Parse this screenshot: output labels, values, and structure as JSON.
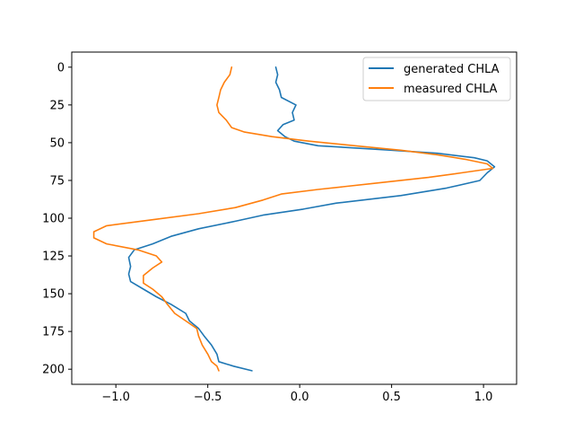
{
  "chart_data": {
    "type": "line",
    "title": "",
    "xlabel": "",
    "ylabel": "",
    "xlim": [
      -1.24,
      1.18
    ],
    "ylim": [
      210,
      -10
    ],
    "y_inverted": true,
    "x_ticks": [
      -1.0,
      -0.5,
      0.0,
      0.5,
      1.0
    ],
    "y_ticks": [
      0,
      25,
      50,
      75,
      100,
      125,
      150,
      175,
      200
    ],
    "grid": false,
    "legend_position": "top-right",
    "series": [
      {
        "name": "generated CHLA",
        "color": "#1f77b4",
        "points": [
          [
            -0.13,
            0
          ],
          [
            -0.12,
            5
          ],
          [
            -0.13,
            10
          ],
          [
            -0.11,
            15
          ],
          [
            -0.1,
            20
          ],
          [
            -0.02,
            25
          ],
          [
            -0.04,
            30
          ],
          [
            -0.03,
            35
          ],
          [
            -0.09,
            38
          ],
          [
            -0.12,
            42
          ],
          [
            -0.08,
            46
          ],
          [
            -0.03,
            49
          ],
          [
            0.1,
            52
          ],
          [
            0.5,
            55
          ],
          [
            0.75,
            57
          ],
          [
            0.95,
            60
          ],
          [
            1.02,
            62
          ],
          [
            1.06,
            66
          ],
          [
            1.02,
            70
          ],
          [
            0.98,
            75
          ],
          [
            0.8,
            80
          ],
          [
            0.55,
            85
          ],
          [
            0.2,
            90
          ],
          [
            0.02,
            94
          ],
          [
            -0.2,
            98
          ],
          [
            -0.35,
            102
          ],
          [
            -0.55,
            107
          ],
          [
            -0.7,
            112
          ],
          [
            -0.8,
            117
          ],
          [
            -0.9,
            121
          ],
          [
            -0.93,
            126
          ],
          [
            -0.92,
            132
          ],
          [
            -0.93,
            137
          ],
          [
            -0.92,
            142
          ],
          [
            -0.85,
            147
          ],
          [
            -0.78,
            152
          ],
          [
            -0.7,
            157
          ],
          [
            -0.62,
            163
          ],
          [
            -0.6,
            168
          ],
          [
            -0.55,
            173
          ],
          [
            -0.52,
            178
          ],
          [
            -0.48,
            184
          ],
          [
            -0.45,
            190
          ],
          [
            -0.44,
            195
          ],
          [
            -0.36,
            198
          ],
          [
            -0.26,
            201
          ]
        ]
      },
      {
        "name": "measured CHLA",
        "color": "#ff7f0e",
        "points": [
          [
            -0.37,
            0
          ],
          [
            -0.38,
            5
          ],
          [
            -0.41,
            10
          ],
          [
            -0.43,
            15
          ],
          [
            -0.44,
            20
          ],
          [
            -0.45,
            25
          ],
          [
            -0.44,
            30
          ],
          [
            -0.4,
            35
          ],
          [
            -0.37,
            40
          ],
          [
            -0.3,
            43
          ],
          [
            -0.15,
            46
          ],
          [
            0.05,
            49
          ],
          [
            0.3,
            52
          ],
          [
            0.55,
            55
          ],
          [
            0.75,
            58
          ],
          [
            0.9,
            61
          ],
          [
            1.02,
            64
          ],
          [
            1.05,
            67
          ],
          [
            0.88,
            70
          ],
          [
            0.7,
            73
          ],
          [
            0.4,
            77
          ],
          [
            0.1,
            81
          ],
          [
            -0.1,
            84
          ],
          [
            -0.2,
            88
          ],
          [
            -0.35,
            93
          ],
          [
            -0.55,
            97
          ],
          [
            -0.8,
            101
          ],
          [
            -1.05,
            105
          ],
          [
            -1.12,
            109
          ],
          [
            -1.12,
            113
          ],
          [
            -1.05,
            117
          ],
          [
            -0.88,
            121
          ],
          [
            -0.78,
            125
          ],
          [
            -0.75,
            129
          ],
          [
            -0.8,
            133
          ],
          [
            -0.85,
            138
          ],
          [
            -0.85,
            143
          ],
          [
            -0.8,
            147
          ],
          [
            -0.75,
            152
          ],
          [
            -0.72,
            157
          ],
          [
            -0.68,
            163
          ],
          [
            -0.62,
            168
          ],
          [
            -0.56,
            173
          ],
          [
            -0.55,
            178
          ],
          [
            -0.53,
            184
          ],
          [
            -0.5,
            190
          ],
          [
            -0.48,
            195
          ],
          [
            -0.45,
            198
          ],
          [
            -0.44,
            201
          ]
        ]
      }
    ]
  }
}
